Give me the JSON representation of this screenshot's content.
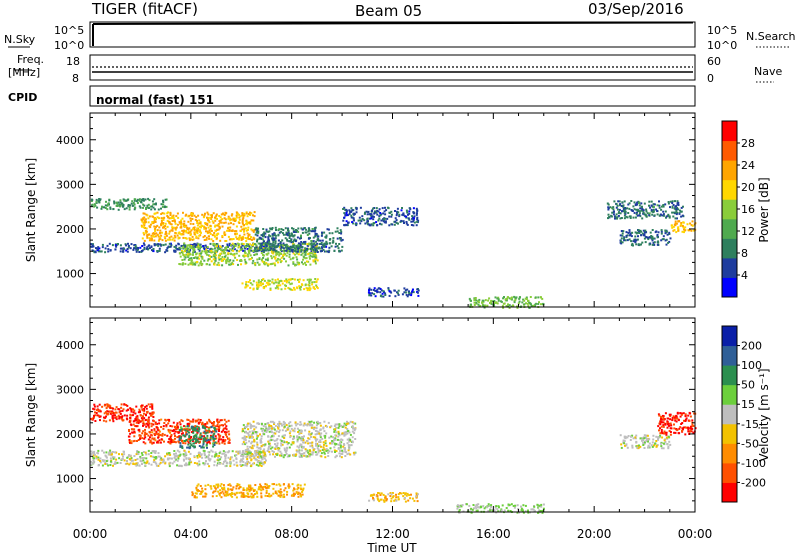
{
  "header": {
    "radar": "TIGER (fitACF)",
    "beam": "Beam 05",
    "date": "03/Sep/2016"
  },
  "noise_panel": {
    "left_label": "N.Sky",
    "right_label": "N.Search",
    "left_top_tick": "10^5",
    "left_bottom_tick": "10^0",
    "right_top_tick": "10^5",
    "right_bottom_tick": "10^0"
  },
  "freq_panel": {
    "left_label_1": "Freq.",
    "left_label_2": "[MHz]",
    "right_label": "Nave",
    "left_ticks": [
      "18",
      "8"
    ],
    "right_ticks": [
      "60",
      "0"
    ]
  },
  "cpid_panel": {
    "label": "CPID",
    "mode": "normal (fast) 151"
  },
  "colors": {
    "power": [
      "#0000ff",
      "#1e3c9e",
      "#2e7f5e",
      "#4faa4f",
      "#8acd3a",
      "#ffd700",
      "#ffa500",
      "#ff5a00",
      "#ff0000"
    ],
    "velocity": [
      "#0a1fa8",
      "#2f5f97",
      "#2b8f4f",
      "#6ccf3c",
      "#bebebe",
      "#f3c200",
      "#ff8c00",
      "#ff5000",
      "#ff0000"
    ]
  },
  "chart_data": [
    {
      "type": "heatmap",
      "quantity": "Power",
      "ylabel": "Slant Range [km]",
      "xlabel": "",
      "x_ticks": [
        "00:00",
        "04:00",
        "08:00",
        "12:00",
        "16:00",
        "20:00",
        "00:00"
      ],
      "y_ticks": [
        "1000",
        "2000",
        "3000",
        "4000"
      ],
      "ylim": [
        250,
        4600
      ],
      "xlim_hours": [
        0,
        24
      ],
      "colorbar": {
        "label": "Power [dB]",
        "ticks": [
          "4",
          "8",
          "12",
          "16",
          "20",
          "24",
          "28"
        ],
        "range": [
          0,
          32
        ]
      },
      "regions": [
        {
          "t": [
            0.0,
            9.5
          ],
          "r0": 1500,
          "r1": 1700,
          "value": 6
        },
        {
          "t": [
            0.0,
            3.0
          ],
          "r0": 2450,
          "r1": 2700,
          "value": 10
        },
        {
          "t": [
            2.0,
            6.5
          ],
          "r0": 1750,
          "r1": 2400,
          "value": 22
        },
        {
          "t": [
            3.5,
            9.0
          ],
          "r0": 1200,
          "r1": 1700,
          "value": 16
        },
        {
          "t": [
            6.5,
            10.0
          ],
          "r0": 1500,
          "r1": 2050,
          "value": 8
        },
        {
          "t": [
            6.0,
            9.0
          ],
          "r0": 650,
          "r1": 900,
          "value": 18
        },
        {
          "t": [
            10.0,
            13.0
          ],
          "r0": 2100,
          "r1": 2500,
          "value": 6
        },
        {
          "t": [
            11.0,
            13.0
          ],
          "r0": 500,
          "r1": 700,
          "value": 5
        },
        {
          "t": [
            15.0,
            18.0
          ],
          "r0": 250,
          "r1": 500,
          "value": 14
        },
        {
          "t": [
            20.5,
            23.5
          ],
          "r0": 2250,
          "r1": 2650,
          "value": 8
        },
        {
          "t": [
            21.0,
            23.0
          ],
          "r0": 1650,
          "r1": 2000,
          "value": 7
        },
        {
          "t": [
            23.0,
            24.0
          ],
          "r0": 1950,
          "r1": 2200,
          "value": 21
        }
      ]
    },
    {
      "type": "heatmap",
      "quantity": "Velocity",
      "ylabel": "Slant Range [km]",
      "xlabel": "Time UT",
      "x_ticks": [
        "00:00",
        "04:00",
        "08:00",
        "12:00",
        "16:00",
        "20:00",
        "00:00"
      ],
      "y_ticks": [
        "1000",
        "2000",
        "3000",
        "4000"
      ],
      "ylim": [
        250,
        4600
      ],
      "xlim_hours": [
        0,
        24
      ],
      "colorbar": {
        "label": "Velocity [m s⁻¹]",
        "ticks": [
          "200",
          "100",
          "50",
          "15",
          "-15",
          "-50",
          "-100",
          "-200"
        ],
        "range": [
          -250,
          250
        ]
      },
      "regions": [
        {
          "t": [
            0.0,
            2.5
          ],
          "r0": 2300,
          "r1": 2700,
          "value": -200
        },
        {
          "t": [
            1.5,
            5.5
          ],
          "r0": 1800,
          "r1": 2350,
          "value": -180
        },
        {
          "t": [
            3.5,
            5.0
          ],
          "r0": 1700,
          "r1": 2200,
          "value": 120
        },
        {
          "t": [
            0.0,
            7.0
          ],
          "r0": 1300,
          "r1": 1650,
          "value": 0
        },
        {
          "t": [
            6.0,
            10.5
          ],
          "r0": 1500,
          "r1": 2300,
          "value": 0
        },
        {
          "t": [
            4.0,
            8.5
          ],
          "r0": 600,
          "r1": 900,
          "value": -80
        },
        {
          "t": [
            11.0,
            13.0
          ],
          "r0": 500,
          "r1": 700,
          "value": -60
        },
        {
          "t": [
            14.5,
            18.0
          ],
          "r0": 250,
          "r1": 450,
          "value": 30
        },
        {
          "t": [
            21.0,
            23.0
          ],
          "r0": 1700,
          "r1": 2000,
          "value": 0
        },
        {
          "t": [
            22.5,
            24.0
          ],
          "r0": 2000,
          "r1": 2500,
          "value": -200
        }
      ]
    }
  ]
}
